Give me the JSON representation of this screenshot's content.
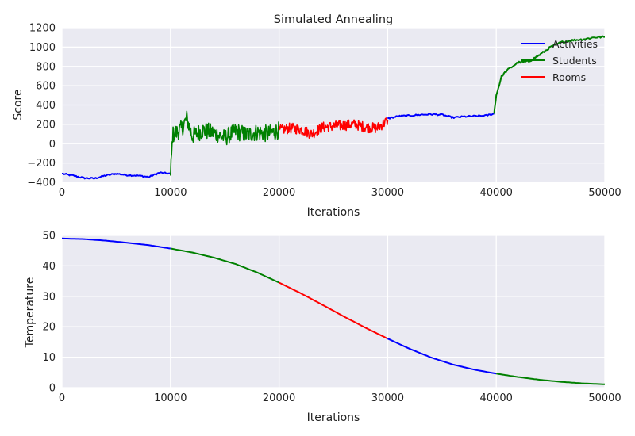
{
  "colors": {
    "background": "#ffffff",
    "plot_bg": "#EAEAF2",
    "grid": "#ffffff",
    "blue": "#0000FF",
    "green": "#008000",
    "red": "#FF0000",
    "text": "#222222"
  },
  "chart_data": [
    {
      "type": "line",
      "title": "Simulated Annealing",
      "xlabel": "Iterations",
      "ylabel": "Score",
      "xlim": [
        0,
        50000
      ],
      "ylim": [
        -400,
        1200
      ],
      "xticks": [
        0,
        10000,
        20000,
        30000,
        40000,
        50000
      ],
      "yticks": [
        -400,
        -200,
        0,
        200,
        400,
        600,
        800,
        1000,
        1200
      ],
      "xtick_labels": [
        "0",
        "10000",
        "20000",
        "30000",
        "40000",
        "50000"
      ],
      "ytick_labels": [
        "−400",
        "−200",
        "0",
        "200",
        "400",
        "600",
        "800",
        "1000",
        "1200"
      ],
      "grid": true,
      "legend_position": "top-right",
      "legend": [
        {
          "name": "Activities",
          "color": "#0000FF"
        },
        {
          "name": "Students",
          "color": "#008000"
        },
        {
          "name": "Rooms",
          "color": "#FF0000"
        }
      ],
      "segments": [
        {
          "series": "Activities",
          "color": "#0000FF",
          "x": [
            0,
            1000,
            2000,
            3000,
            4000,
            5000,
            6000,
            7000,
            8000,
            9000,
            10000
          ],
          "y": [
            -310,
            -330,
            -355,
            -360,
            -330,
            -310,
            -325,
            -330,
            -345,
            -300,
            -310
          ],
          "noise": 8
        },
        {
          "series": "Students",
          "color": "#008000",
          "x": [
            10000,
            10200,
            11000,
            11500,
            12000,
            13000,
            14000,
            15000,
            16000,
            17000,
            18000,
            19000,
            20000
          ],
          "y": [
            -330,
            90,
            150,
            260,
            80,
            140,
            110,
            60,
            130,
            90,
            120,
            100,
            140
          ],
          "noise": 90
        },
        {
          "series": "Rooms",
          "color": "#FF0000",
          "x": [
            20000,
            21000,
            22000,
            23000,
            24000,
            25000,
            26000,
            27000,
            28000,
            29000,
            30000
          ],
          "y": [
            140,
            160,
            150,
            100,
            170,
            180,
            190,
            200,
            170,
            160,
            240
          ],
          "noise": 55
        },
        {
          "series": "Activities",
          "color": "#0000FF",
          "x": [
            30000,
            31000,
            32000,
            33000,
            34000,
            35000,
            36000,
            37000,
            38000,
            39000,
            39800
          ],
          "y": [
            260,
            285,
            290,
            300,
            305,
            300,
            270,
            280,
            285,
            290,
            310
          ],
          "noise": 8
        },
        {
          "series": "Students",
          "color": "#008000",
          "x": [
            39800,
            40000,
            40500,
            41000,
            42000,
            43000,
            44000,
            45000,
            46000,
            47000,
            48000,
            49000,
            50000
          ],
          "y": [
            310,
            500,
            700,
            760,
            840,
            850,
            920,
            1000,
            1050,
            1070,
            1080,
            1100,
            1105
          ],
          "noise": 10
        }
      ]
    },
    {
      "type": "line",
      "title": "",
      "xlabel": "Iterations",
      "ylabel": "Temperature",
      "xlim": [
        0,
        50000
      ],
      "ylim": [
        0,
        50
      ],
      "xticks": [
        0,
        10000,
        20000,
        30000,
        40000,
        50000
      ],
      "yticks": [
        0,
        10,
        20,
        30,
        40,
        50
      ],
      "xtick_labels": [
        "0",
        "10000",
        "20000",
        "30000",
        "40000",
        "50000"
      ],
      "ytick_labels": [
        "0",
        "10",
        "20",
        "30",
        "40",
        "50"
      ],
      "grid": true,
      "segments": [
        {
          "color": "#0000FF",
          "x": [
            0,
            2000,
            4000,
            6000,
            8000,
            10000
          ],
          "y": [
            49.0,
            48.8,
            48.3,
            47.6,
            46.8,
            45.7
          ]
        },
        {
          "color": "#008000",
          "x": [
            10000,
            12000,
            14000,
            16000,
            18000,
            20000
          ],
          "y": [
            45.7,
            44.4,
            42.7,
            40.6,
            37.8,
            34.5
          ]
        },
        {
          "color": "#FF0000",
          "x": [
            20000,
            22000,
            24000,
            26000,
            28000,
            30000
          ],
          "y": [
            34.5,
            31.0,
            27.2,
            23.3,
            19.6,
            16.1
          ]
        },
        {
          "color": "#0000FF",
          "x": [
            30000,
            32000,
            34000,
            36000,
            38000,
            40000
          ],
          "y": [
            16.1,
            12.8,
            9.9,
            7.6,
            5.9,
            4.6
          ]
        },
        {
          "color": "#008000",
          "x": [
            40000,
            42000,
            44000,
            46000,
            48000,
            50000
          ],
          "y": [
            4.6,
            3.5,
            2.6,
            1.9,
            1.4,
            1.1
          ]
        }
      ]
    }
  ]
}
